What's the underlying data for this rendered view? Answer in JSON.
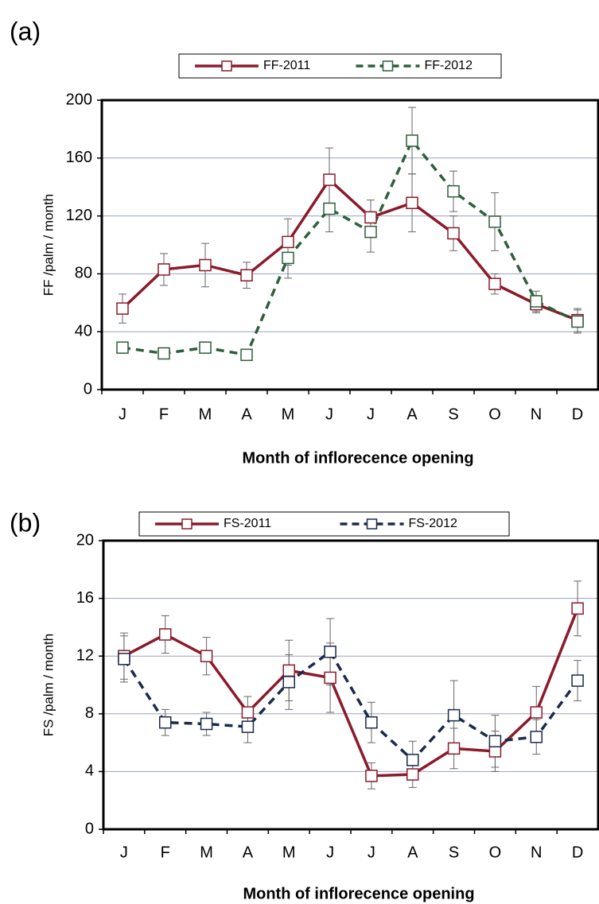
{
  "chart_data": [
    {
      "type": "line",
      "panel_label": "(a)",
      "y_label": "FF /palm / month",
      "x_label": "Month of inflorecence opening",
      "categories": [
        "J",
        "F",
        "M",
        "A",
        "M",
        "J",
        "J",
        "A",
        "S",
        "O",
        "N",
        "D"
      ],
      "ylim": [
        0,
        200
      ],
      "yticks": [
        0,
        40,
        80,
        120,
        160,
        200
      ],
      "grid": true,
      "series": [
        {
          "name": "FF-2011",
          "color": "#8b1a2b",
          "dash": false,
          "values": [
            56,
            83,
            86,
            79,
            102,
            145,
            119,
            129,
            108,
            73,
            59,
            48
          ],
          "errors": [
            10,
            11,
            15,
            9,
            16,
            22,
            12,
            20,
            12,
            7,
            6,
            8
          ]
        },
        {
          "name": "FF-2012",
          "color": "#2e5e3a",
          "dash": true,
          "values": [
            29,
            25,
            29,
            24,
            91,
            125,
            109,
            172,
            137,
            116,
            61,
            47
          ],
          "errors": [
            2,
            2,
            2,
            2,
            14,
            16,
            14,
            23,
            14,
            20,
            7,
            8
          ]
        }
      ]
    },
    {
      "type": "line",
      "panel_label": "(b)",
      "y_label": "FS /palm / month",
      "x_label": "Month of inflorecence opening",
      "categories": [
        "J",
        "F",
        "M",
        "A",
        "M",
        "J",
        "J",
        "A",
        "S",
        "O",
        "N",
        "D"
      ],
      "ylim": [
        0,
        20
      ],
      "yticks": [
        0,
        4,
        8,
        12,
        16,
        20
      ],
      "grid": true,
      "series": [
        {
          "name": "FS-2011",
          "color": "#8b1a2b",
          "dash": false,
          "values": [
            12.0,
            13.5,
            12.0,
            8.1,
            11.0,
            10.5,
            3.7,
            3.8,
            5.6,
            5.4,
            8.1,
            15.3
          ],
          "errors": [
            1.6,
            1.3,
            1.3,
            1.1,
            2.1,
            2.4,
            0.9,
            0.9,
            1.4,
            1.4,
            1.8,
            1.9
          ]
        },
        {
          "name": "FS-2012",
          "color": "#1a2a4a",
          "dash": true,
          "values": [
            11.8,
            7.4,
            7.3,
            7.1,
            10.2,
            12.3,
            7.4,
            4.8,
            7.9,
            6.1,
            6.4,
            10.3
          ],
          "errors": [
            1.6,
            0.9,
            0.8,
            1.1,
            1.9,
            2.3,
            1.4,
            1.3,
            2.4,
            1.8,
            1.2,
            1.4
          ]
        }
      ]
    }
  ]
}
